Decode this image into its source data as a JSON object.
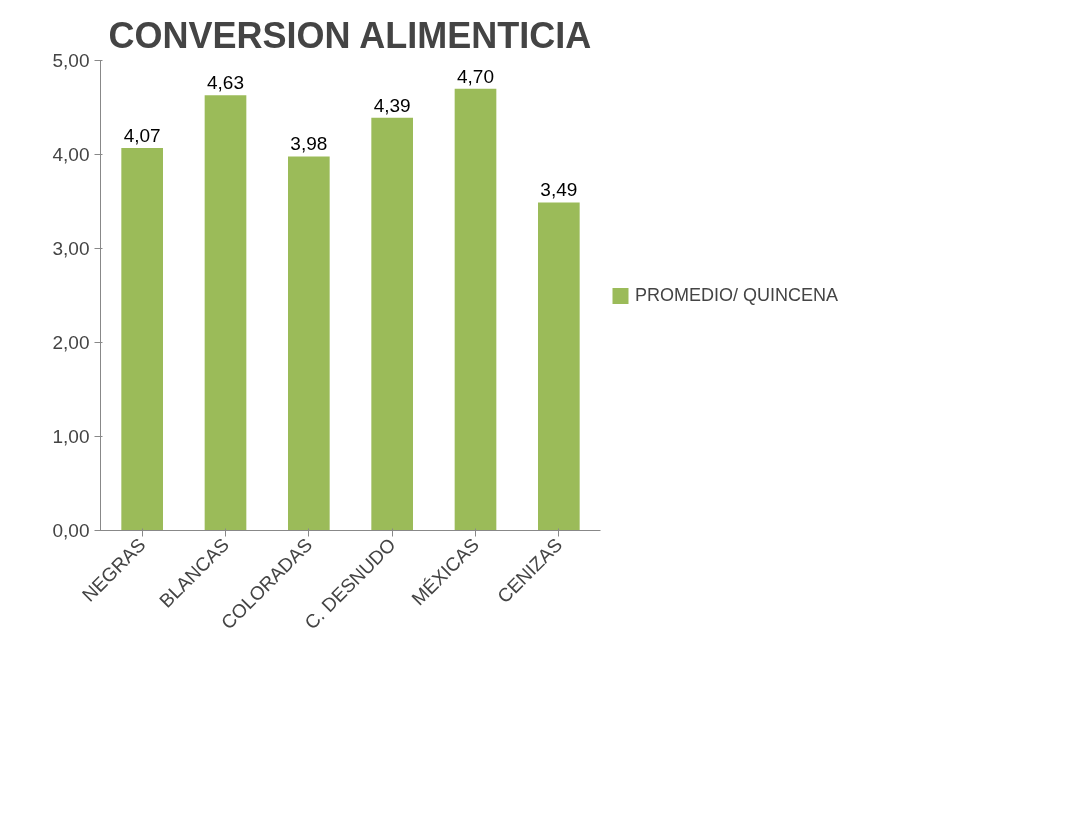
{
  "chart_data": {
    "type": "bar",
    "title": "CONVERSION ALIMENTICIA",
    "categories": [
      "NEGRAS",
      "BLANCAS",
      "COLORADAS",
      "C. DESNUDO",
      "MÉXICAS",
      "CENIZAS"
    ],
    "series": [
      {
        "name": "PROMEDIO/ QUINCENA",
        "color": "#9bbb59",
        "values": [
          4.07,
          4.63,
          3.98,
          4.39,
          4.7,
          3.49
        ],
        "value_labels": [
          "4,07",
          "4,63",
          "3,98",
          "4,39",
          "4,70",
          "3,49"
        ]
      }
    ],
    "ylim": [
      0,
      5
    ],
    "yticks": [
      {
        "value": 0,
        "label": "0,00"
      },
      {
        "value": 1,
        "label": "1,00"
      },
      {
        "value": 2,
        "label": "2,00"
      },
      {
        "value": 3,
        "label": "3,00"
      },
      {
        "value": 4,
        "label": "4,00"
      },
      {
        "value": 5,
        "label": "5,00"
      }
    ],
    "grid": false,
    "legend": "right"
  }
}
